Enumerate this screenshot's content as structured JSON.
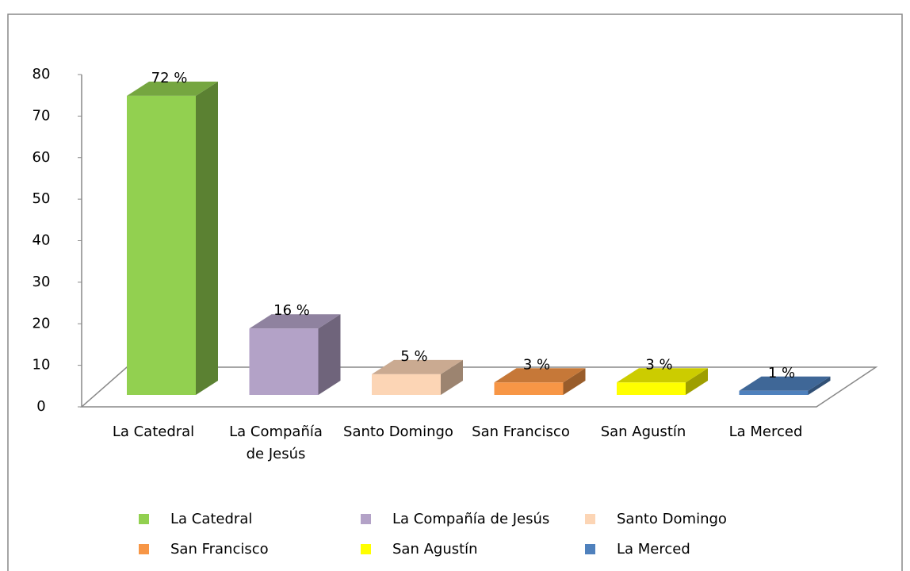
{
  "chart_data": {
    "type": "bar3d",
    "categories": [
      "La Catedral",
      "La Compañía de Jesús",
      "Santo Domingo",
      "San Francisco",
      "San Agustín",
      "La Merced"
    ],
    "values": [
      72,
      16,
      5,
      3,
      3,
      1
    ],
    "value_labels": [
      "72 %",
      "16 %",
      "5 %",
      "3 %",
      "3 %",
      "1 %"
    ],
    "colors": [
      "#92d050",
      "#b3a2c7",
      "#fcd5b5",
      "#f79646",
      "#ffff00",
      "#4f81bd"
    ],
    "ylim": [
      0,
      80
    ],
    "yticks": [
      0,
      10,
      20,
      30,
      40,
      50,
      60,
      70,
      80
    ],
    "grid": false,
    "legend": "bottom"
  }
}
